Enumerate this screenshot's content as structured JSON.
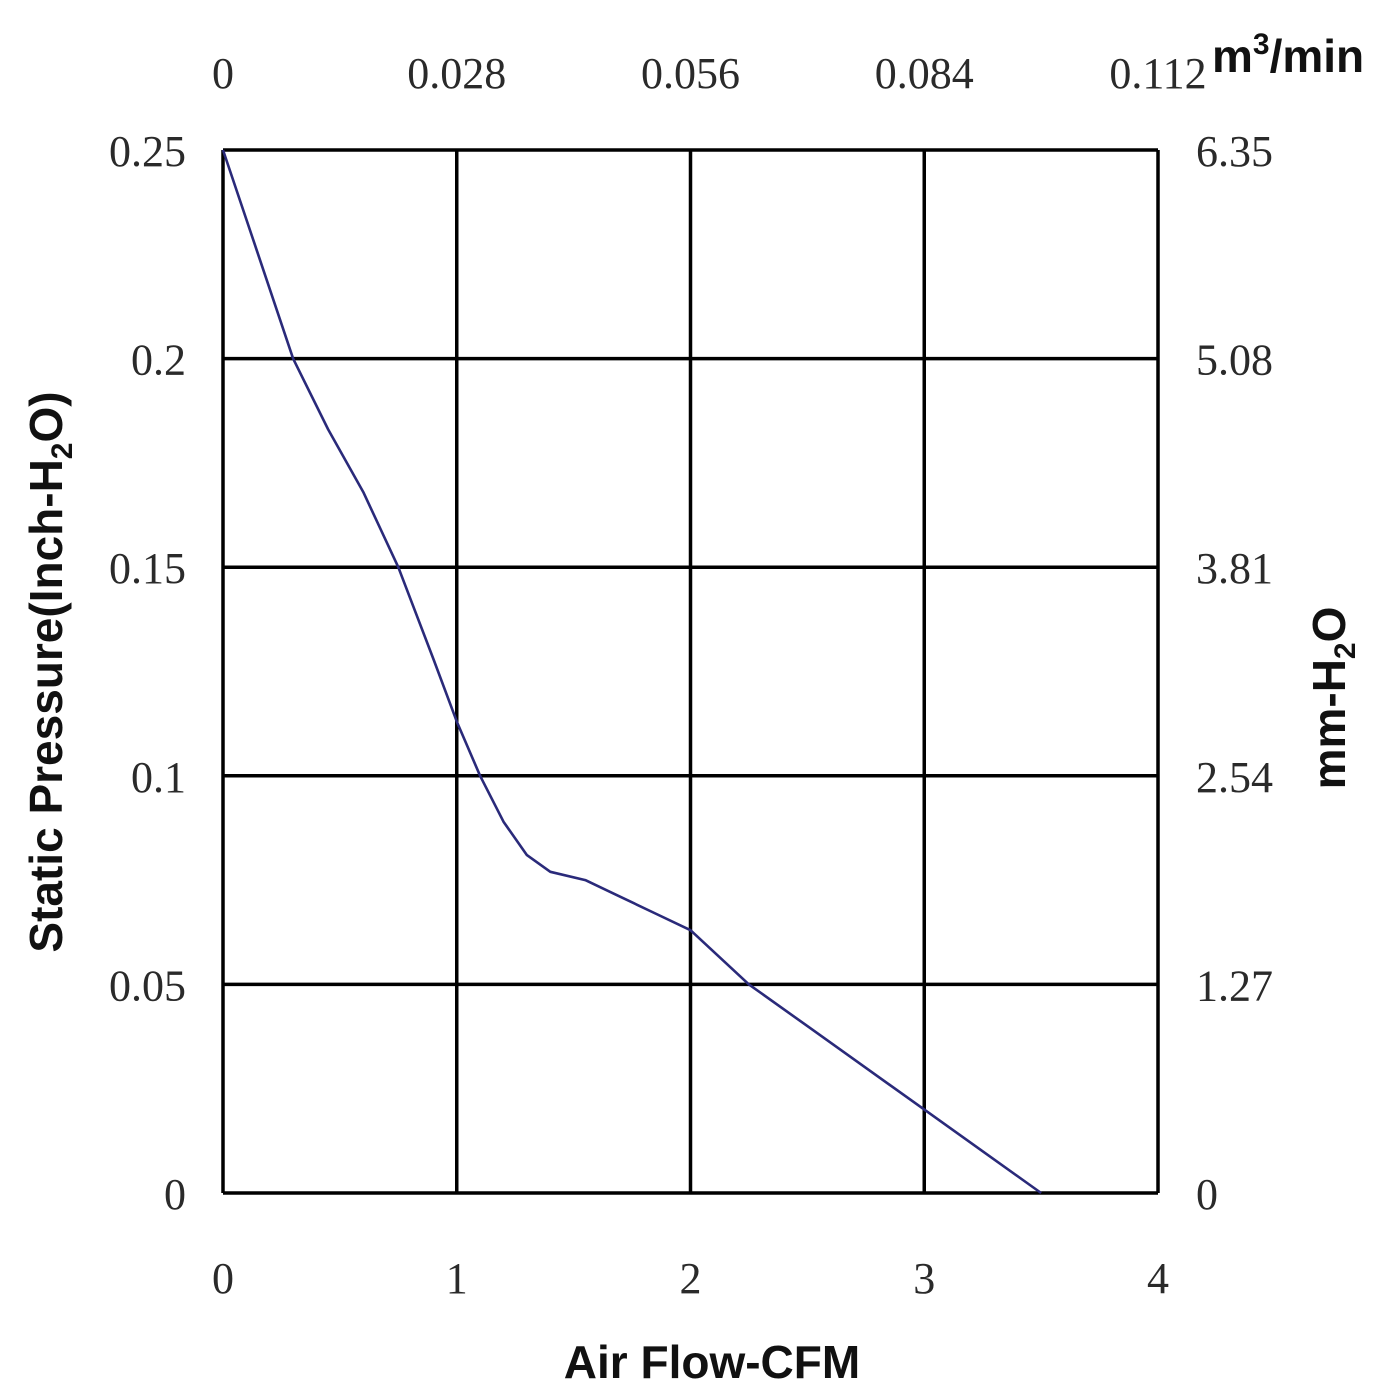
{
  "chart_data": {
    "type": "line",
    "xlabel": "Air Flow-CFM",
    "ylabel_left": {
      "main": "Static Pressure(Inch-H",
      "sub": "2",
      "end": "O)"
    },
    "ylabel_right": {
      "main": "mm-H",
      "sub": "2",
      "end": "O"
    },
    "x2label": {
      "main": "m",
      "sup": "3",
      "end": "/min"
    },
    "xlim": [
      0,
      4
    ],
    "ylim": [
      0,
      0.25
    ],
    "x_ticks": [
      "0",
      "1",
      "2",
      "3",
      "4"
    ],
    "x2_ticks": [
      "0",
      "0.028",
      "0.056",
      "0.084",
      "0.112"
    ],
    "y_ticks": [
      "0",
      "0.05",
      "0.1",
      "0.15",
      "0.2",
      "0.25"
    ],
    "y2_ticks": [
      "0",
      "1.27",
      "2.54",
      "3.81",
      "5.08",
      "6.35"
    ],
    "grid": true,
    "line_color": "#2a2a7a",
    "series": [
      {
        "x": [
          0,
          0.15,
          0.3,
          0.45,
          0.6,
          0.75,
          0.9,
          1.0,
          1.1,
          1.2,
          1.3,
          1.4,
          1.55,
          1.7,
          1.85,
          2.0,
          2.25,
          2.5,
          2.75,
          3.0,
          3.25,
          3.5
        ],
        "y": [
          0.25,
          0.225,
          0.2,
          0.183,
          0.168,
          0.15,
          0.128,
          0.113,
          0.1,
          0.089,
          0.081,
          0.077,
          0.075,
          0.071,
          0.067,
          0.063,
          0.05,
          0.04,
          0.03,
          0.02,
          0.01,
          0.0
        ]
      }
    ]
  }
}
